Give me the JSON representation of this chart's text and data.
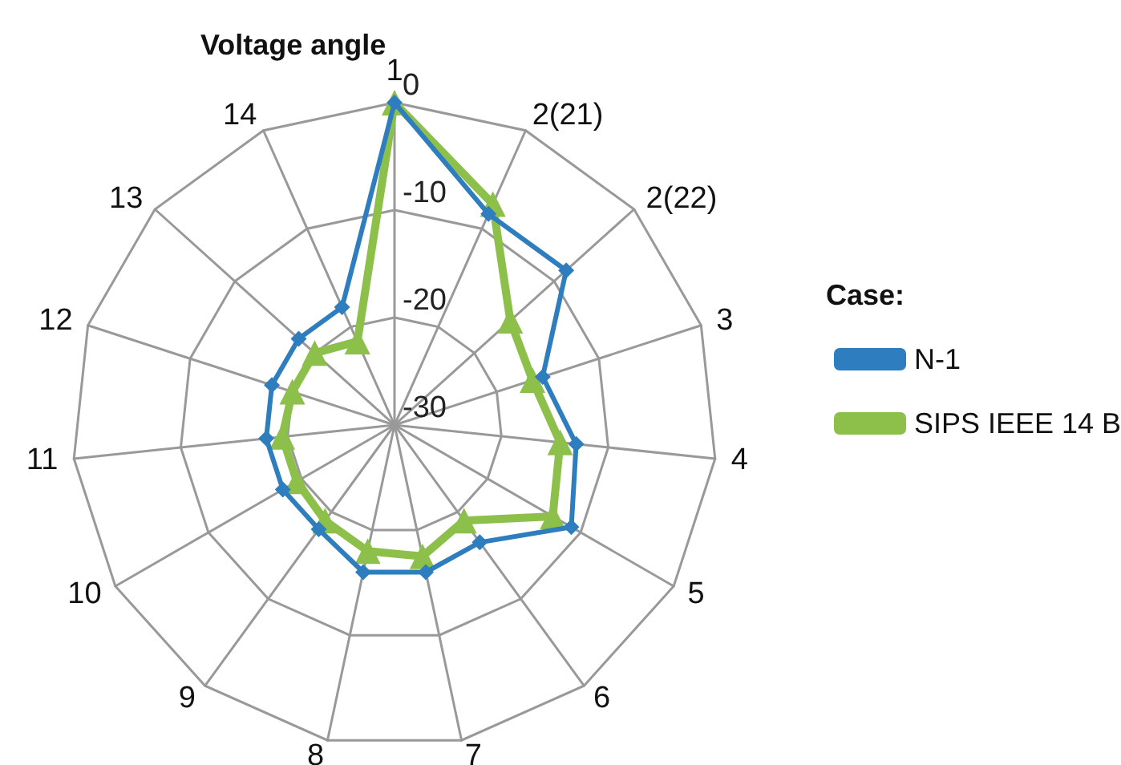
{
  "chart_data": {
    "type": "radar",
    "title": "Voltage angle",
    "legend_title": "Case:",
    "legend": "right",
    "categories": [
      "1",
      "2(21)",
      "2(22)",
      "3",
      "4",
      "5",
      "6",
      "7",
      "8",
      "9",
      "10",
      "11",
      "12",
      "13",
      "14"
    ],
    "ylim": [
      -30,
      0
    ],
    "yticks": [
      0,
      -10,
      -20,
      -30
    ],
    "series": [
      {
        "name": "N-1",
        "color": "#2e7ebf",
        "marker": "diamond",
        "values": [
          0,
          -8.5,
          -8.5,
          -15.5,
          -13,
          -11,
          -16.5,
          -16,
          -16,
          -18,
          -18,
          -18,
          -18,
          -18,
          -18
        ]
      },
      {
        "name": "SIPS IEEE 14 B",
        "color": "#8dc04a",
        "marker": "triangle",
        "values": [
          0,
          -7.5,
          -15.5,
          -16.5,
          -14.5,
          -13,
          -19,
          -17.5,
          -18,
          -19,
          -19.5,
          -19.5,
          -20,
          -20,
          -21.5
        ]
      }
    ]
  }
}
